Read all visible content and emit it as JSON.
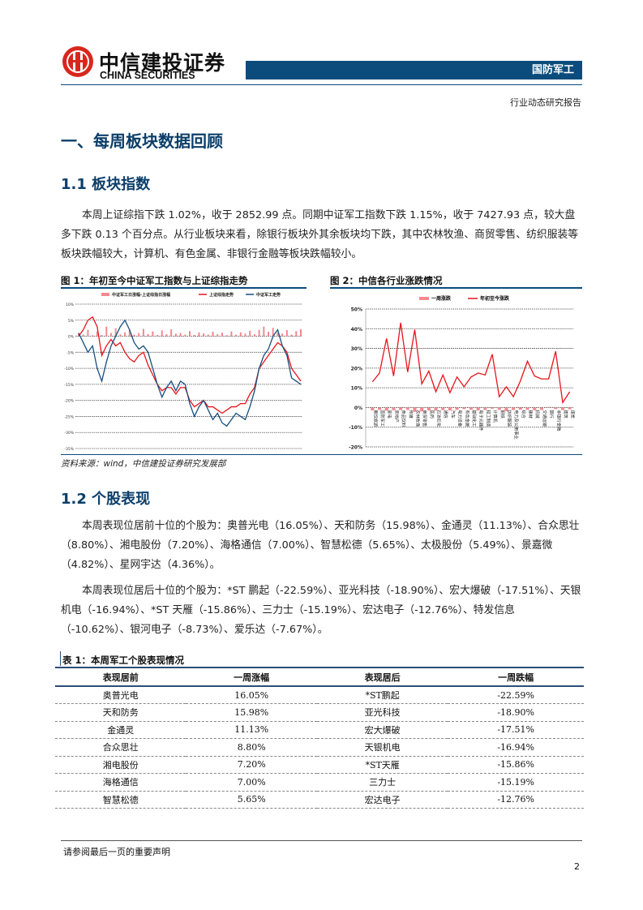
{
  "header": {
    "logo_cn": "中信建投证券",
    "logo_en": "CHINA SECURITIES",
    "sector": "国防军工",
    "report_type": "行业动态研究报告"
  },
  "section1": {
    "title": "一、每周板块数据回顾"
  },
  "section11": {
    "title": "1.1 板块指数",
    "paragraph": "本周上证综指下跌 1.02%，收于 2852.99 点。同期中证军工指数下跌 1.15%，收于 7427.93 点，较大盘多下跌 0.13 个百分点。从行业板块来看，除银行板块外其余板块均下跌，其中农林牧渔、商贸零售、纺织服装等板块跌幅较大，计算机、有色金属、非银行金融等板块跌幅较小。"
  },
  "figures": {
    "fig1_title": "图 1：年初至今中证军工指数与上证综指走势",
    "fig2_title": "图 2：中信各行业涨跌情况",
    "source": "资料来源：wind，中信建投证券研究发展部"
  },
  "chart_data": [
    {
      "type": "line",
      "legend": [
        "中证军工日涨幅-上证综指日涨幅",
        "上证综指走势",
        "中证军工走势"
      ],
      "legend_placement": "top",
      "ylim": [
        -35,
        10
      ],
      "yticks": [
        "10%",
        "5%",
        "0%",
        "-5%",
        "-10%",
        "-15%",
        "-20%",
        "-25%",
        "-30%",
        "-35%"
      ],
      "grid": true,
      "colors": {
        "diff": "#f4888f",
        "sh": "#e8141c",
        "jg": "#174f7f"
      },
      "series": [
        {
          "name": "中证军工走势",
          "values": [
            1,
            -2,
            -5,
            -3,
            -10,
            -14,
            -8,
            -3,
            0,
            3,
            5,
            2,
            -2,
            -4,
            -3,
            -5,
            -10,
            -15,
            -19,
            -16,
            -14,
            -17,
            -14,
            -15,
            -21,
            -25,
            -22,
            -20,
            -23,
            -26,
            -24,
            -27,
            -28,
            -26,
            -24,
            -25,
            -26,
            -22,
            -17,
            -10,
            -6,
            -4,
            0,
            2,
            -3,
            -6,
            -13,
            -14,
            -15
          ]
        },
        {
          "name": "上证综指走势",
          "values": [
            0,
            2,
            5,
            6,
            3,
            -6,
            -3,
            -1,
            -3,
            -2,
            -5,
            -7,
            -8,
            -6,
            -5,
            -9,
            -12,
            -15,
            -17,
            -16,
            -16,
            -18,
            -16,
            -16,
            -20,
            -22,
            -21,
            -20,
            -22,
            -22,
            -23,
            -24,
            -23,
            -22,
            -22,
            -21,
            -21,
            -18,
            -16,
            -10,
            -8,
            -6,
            -4,
            -2,
            -3,
            -5,
            -10,
            -12,
            -14
          ]
        },
        {
          "name": "中证军工日涨幅-上证综指日涨幅",
          "values": [
            1,
            0.5,
            2,
            0.3,
            1.5,
            0.4,
            3,
            1,
            2.5,
            0.6,
            1.2,
            2,
            0.5,
            1,
            2.3,
            0.7,
            1.5,
            0.4,
            1.8,
            0.6,
            2.2,
            0.8,
            1,
            0.5,
            1.6,
            0.4,
            1.2,
            0.9,
            0.5,
            1.4,
            0.6,
            1.1,
            0.3,
            1.5,
            0.5,
            1.2,
            0.8,
            1.7,
            0.6,
            2,
            3,
            1.4,
            2.6,
            1.1,
            0.8,
            1.9,
            0.5,
            1.6,
            2.2
          ]
        }
      ]
    },
    {
      "type": "line",
      "legend": [
        "一周涨跌",
        "年初至今涨跌"
      ],
      "legend_placement": "top",
      "ylim": [
        -20,
        50
      ],
      "yticks": [
        "50%",
        "40%",
        "30%",
        "20%",
        "10%",
        "0%",
        "-10%",
        "-20%"
      ],
      "grid": true,
      "colors": {
        "week": "#f4888f",
        "ytd": "#e8141c"
      },
      "categories": [
        "餐饮旅游",
        "国防军工",
        "家电",
        "房地产",
        "食品饮料",
        "传媒",
        "农林牧渔",
        "商贸零售",
        "医药",
        "石油石化",
        "通信",
        "汽车",
        "电力设备",
        "有色金属",
        "基础化工",
        "电子元器件",
        "轻工制造",
        "计算机",
        "钢铁",
        "纺织服装",
        "电力及公用事业",
        "综合",
        "建材",
        "机械",
        "交通运输",
        "银行",
        "非银行金融",
        "建筑",
        "煤炭"
      ],
      "series": [
        {
          "name": "一周涨跌",
          "values": [
            -1.5,
            -1.2,
            -1.6,
            -1.4,
            -1.3,
            -1.2,
            -2.2,
            -2,
            -1.5,
            -1.6,
            -1.3,
            -1.5,
            -1.2,
            -0.8,
            -1.1,
            -1.5,
            -1.3,
            -0.6,
            -1.2,
            -1.9,
            -1.3,
            -1.1,
            -1.2,
            -1.4,
            -1.2,
            0.3,
            -0.8,
            -1.3,
            -0.9
          ]
        },
        {
          "name": "年初至今涨跌",
          "values": [
            13,
            17.5,
            35,
            16,
            43,
            18,
            39.5,
            12,
            18.5,
            8,
            16.5,
            7.5,
            15.5,
            10.5,
            15.5,
            17.5,
            16.5,
            27,
            5.5,
            10.5,
            5.5,
            13.5,
            23.5,
            16,
            14.5,
            14.5,
            28.5,
            2.5,
            8
          ]
        }
      ]
    }
  ],
  "section12": {
    "title": "1.2 个股表现",
    "para1": "本周表现位居前十位的个股为：奥普光电（16.05%）、天和防务（15.98%）、金通灵（11.13%）、合众思壮（8.80%）、湘电股份（7.20%）、海格通信（7.00%）、智慧松德（5.65%）、太极股份（5.49%）、景嘉微（4.82%）、星网宇达（4.36%）。",
    "para2": "本周表现位居后十位的个股为：*ST 鹏起（-22.59%）、亚光科技（-18.90%）、宏大爆破（-17.51%）、天银机电（-16.94%）、*ST 天雁（-15.86%）、三力士（-15.19%）、宏达电子（-12.76%）、特发信息（-10.62%）、银河电子（-8.73%）、爱乐达（-7.67%）。"
  },
  "table": {
    "title": "表 1：本周军工个股表现情况",
    "headers": [
      "表现居前",
      "一周涨幅",
      "表现居后",
      "一周跌幅"
    ],
    "rows": [
      [
        "奥普光电",
        "16.05%",
        "*ST鹏起",
        "-22.59%"
      ],
      [
        "天和防务",
        "15.98%",
        "亚光科技",
        "-18.90%"
      ],
      [
        "金通灵",
        "11.13%",
        "宏大爆破",
        "-17.51%"
      ],
      [
        "合众思壮",
        "8.80%",
        "天银机电",
        "-16.94%"
      ],
      [
        "湘电股份",
        "7.20%",
        "*ST天雁",
        "-15.86%"
      ],
      [
        "海格通信",
        "7.00%",
        "三力士",
        "-15.19%"
      ],
      [
        "智慧松德",
        "5.65%",
        "宏达电子",
        "-12.76%"
      ]
    ]
  },
  "footer": {
    "disclaimer": "请参阅最后一页的重要声明",
    "page": "2"
  }
}
